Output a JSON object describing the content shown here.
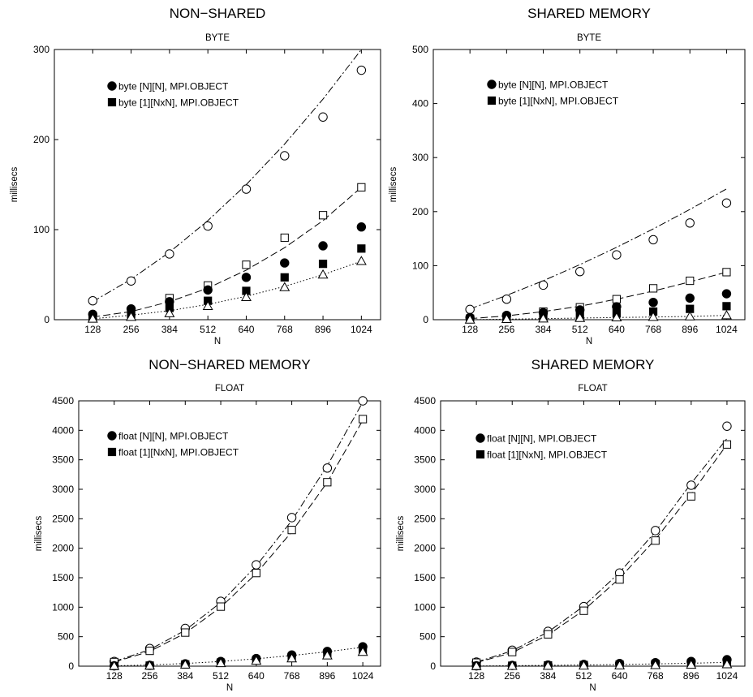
{
  "chart_data": [
    {
      "type": "scatter",
      "title": "NON−SHARED",
      "subtitle": "BYTE",
      "xlabel": "N",
      "ylabel": "millisecs",
      "x": [
        128,
        256,
        384,
        512,
        640,
        768,
        896,
        1024
      ],
      "xlim": [
        0,
        1088
      ],
      "ylim": [
        0,
        300
      ],
      "xticks": [
        "128",
        "256",
        "384",
        "512",
        "640",
        "768",
        "896",
        "1024"
      ],
      "yticks": [
        "0",
        "100",
        "200",
        "300"
      ],
      "legend_position": "top-left",
      "legend": [
        {
          "marker": "filled-circle",
          "label": "byte [N][N], MPI.OBJECT"
        },
        {
          "marker": "filled-square",
          "label": "byte [1][NxN], MPI.OBJECT"
        }
      ],
      "series": [
        {
          "marker": "open-circle",
          "values": [
            21,
            43,
            73,
            104,
            145,
            182,
            225,
            277
          ]
        },
        {
          "marker": "open-square",
          "values": [
            3,
            8,
            24,
            38,
            61,
            91,
            116,
            147
          ]
        },
        {
          "marker": "filled-circle",
          "values": [
            6,
            12,
            20,
            33,
            47,
            63,
            82,
            103
          ]
        },
        {
          "marker": "filled-square",
          "values": [
            2,
            6,
            13,
            21,
            32,
            47,
            62,
            79
          ]
        },
        {
          "marker": "open-triangle",
          "values": [
            1,
            3,
            7,
            15,
            25,
            36,
            50,
            65
          ]
        }
      ],
      "fit_lines": [
        {
          "style": "dashdot",
          "values": [
            20,
            45,
            75,
            110,
            150,
            195,
            245,
            300
          ]
        },
        {
          "style": "dashed",
          "values": [
            3,
            9,
            20,
            35,
            55,
            80,
            110,
            147
          ]
        },
        {
          "style": "dotted",
          "values": [
            1,
            5,
            10,
            17,
            26,
            37,
            50,
            65
          ]
        }
      ]
    },
    {
      "type": "scatter",
      "title": "SHARED MEMORY",
      "subtitle": "BYTE",
      "xlabel": "N",
      "ylabel": "millisecs",
      "x": [
        128,
        256,
        384,
        512,
        640,
        768,
        896,
        1024
      ],
      "xlim": [
        0,
        1088
      ],
      "ylim": [
        0,
        500
      ],
      "xticks": [
        "128",
        "256",
        "384",
        "512",
        "640",
        "768",
        "896",
        "1024"
      ],
      "yticks": [
        "0",
        "100",
        "200",
        "300",
        "400",
        "500"
      ],
      "legend_position": "top-left",
      "legend": [
        {
          "marker": "filled-circle",
          "label": "byte [N][N], MPI.OBJECT"
        },
        {
          "marker": "filled-square",
          "label": "byte [1][NxN], MPI.OBJECT"
        }
      ],
      "series": [
        {
          "marker": "open-circle",
          "values": [
            19,
            38,
            64,
            89,
            120,
            148,
            179,
            216
          ]
        },
        {
          "marker": "open-square",
          "values": [
            2,
            5,
            15,
            23,
            38,
            58,
            72,
            88
          ]
        },
        {
          "marker": "filled-circle",
          "values": [
            4,
            8,
            13,
            18,
            24,
            32,
            40,
            48
          ]
        },
        {
          "marker": "filled-square",
          "values": [
            1,
            3,
            6,
            9,
            12,
            15,
            20,
            25
          ]
        },
        {
          "marker": "open-triangle",
          "values": [
            0,
            1,
            2,
            3,
            4,
            5,
            6,
            8
          ]
        }
      ],
      "fit_lines": [
        {
          "style": "dashdot",
          "values": [
            20,
            45,
            72,
            102,
            134,
            168,
            204,
            242
          ]
        },
        {
          "style": "dashed",
          "values": [
            2,
            7,
            15,
            25,
            38,
            53,
            70,
            88
          ]
        },
        {
          "style": "dotted",
          "values": [
            0,
            1,
            2,
            3,
            4,
            5,
            6,
            8
          ]
        }
      ]
    },
    {
      "type": "scatter",
      "title": "NON−SHARED MEMORY",
      "subtitle": "FLOAT",
      "xlabel": "N",
      "ylabel": "millisecs",
      "x": [
        128,
        256,
        384,
        512,
        640,
        768,
        896,
        1024
      ],
      "xlim": [
        0,
        1088
      ],
      "ylim": [
        0,
        4500
      ],
      "xticks": [
        "128",
        "256",
        "384",
        "512",
        "640",
        "768",
        "896",
        "1024"
      ],
      "yticks": [
        "0",
        "500",
        "1000",
        "1500",
        "2000",
        "2500",
        "3000",
        "3500",
        "4000",
        "4500"
      ],
      "legend_position": "top-left",
      "legend": [
        {
          "marker": "filled-circle",
          "label": "float [N][N], MPI.OBJECT"
        },
        {
          "marker": "filled-square",
          "label": "float [1][NxN], MPI.OBJECT"
        }
      ],
      "series": [
        {
          "marker": "open-circle",
          "values": [
            80,
            300,
            640,
            1100,
            1720,
            2520,
            3360,
            4500
          ]
        },
        {
          "marker": "open-square",
          "values": [
            70,
            260,
            570,
            1010,
            1580,
            2310,
            3120,
            4190
          ]
        },
        {
          "marker": "filled-circle",
          "values": [
            5,
            15,
            40,
            80,
            130,
            190,
            250,
            330
          ]
        },
        {
          "marker": "filled-square",
          "values": [
            3,
            10,
            30,
            60,
            100,
            150,
            200,
            260
          ]
        },
        {
          "marker": "open-triangle",
          "values": [
            2,
            8,
            25,
            50,
            90,
            130,
            180,
            240
          ]
        }
      ],
      "fit_lines": [
        {
          "style": "dashdot",
          "values": [
            80,
            280,
            610,
            1080,
            1700,
            2470,
            3400,
            4480
          ]
        },
        {
          "style": "dashed",
          "values": [
            70,
            250,
            560,
            1000,
            1570,
            2280,
            3120,
            4170
          ]
        },
        {
          "style": "dotted",
          "values": [
            5,
            20,
            45,
            80,
            125,
            180,
            245,
            320
          ]
        }
      ]
    },
    {
      "type": "scatter",
      "title": "SHARED MEMORY",
      "subtitle": "FLOAT",
      "xlabel": "N",
      "ylabel": "millisecs",
      "x": [
        128,
        256,
        384,
        512,
        640,
        768,
        896,
        1024
      ],
      "xlim": [
        0,
        1088
      ],
      "ylim": [
        0,
        4500
      ],
      "xticks": [
        "128",
        "256",
        "384",
        "512",
        "640",
        "768",
        "896",
        "1024"
      ],
      "yticks": [
        "0",
        "500",
        "1000",
        "1500",
        "2000",
        "2500",
        "3000",
        "3500",
        "4000",
        "4500"
      ],
      "legend_position": "top-left",
      "legend": [
        {
          "marker": "filled-circle",
          "label": "float [N][N], MPI.OBJECT"
        },
        {
          "marker": "filled-square",
          "label": "float [1][NxN], MPI.OBJECT"
        }
      ],
      "series": [
        {
          "marker": "open-circle",
          "values": [
            70,
            270,
            590,
            1010,
            1580,
            2300,
            3070,
            4070
          ]
        },
        {
          "marker": "open-square",
          "values": [
            60,
            240,
            540,
            940,
            1470,
            2130,
            2880,
            3760
          ]
        },
        {
          "marker": "filled-circle",
          "values": [
            5,
            12,
            20,
            30,
            45,
            60,
            80,
            110
          ]
        },
        {
          "marker": "filled-square",
          "values": [
            3,
            8,
            14,
            20,
            28,
            38,
            50,
            65
          ]
        },
        {
          "marker": "open-triangle",
          "values": [
            1,
            3,
            5,
            8,
            12,
            16,
            22,
            30
          ]
        }
      ],
      "fit_lines": [
        {
          "style": "dashdot",
          "values": [
            70,
            260,
            580,
            1020,
            1590,
            2280,
            3100,
            3860
          ]
        },
        {
          "style": "dashed",
          "values": [
            60,
            230,
            530,
            950,
            1490,
            2150,
            2920,
            3760
          ]
        },
        {
          "style": "dotted",
          "values": [
            3,
            8,
            14,
            20,
            28,
            38,
            50,
            65
          ]
        }
      ]
    }
  ]
}
